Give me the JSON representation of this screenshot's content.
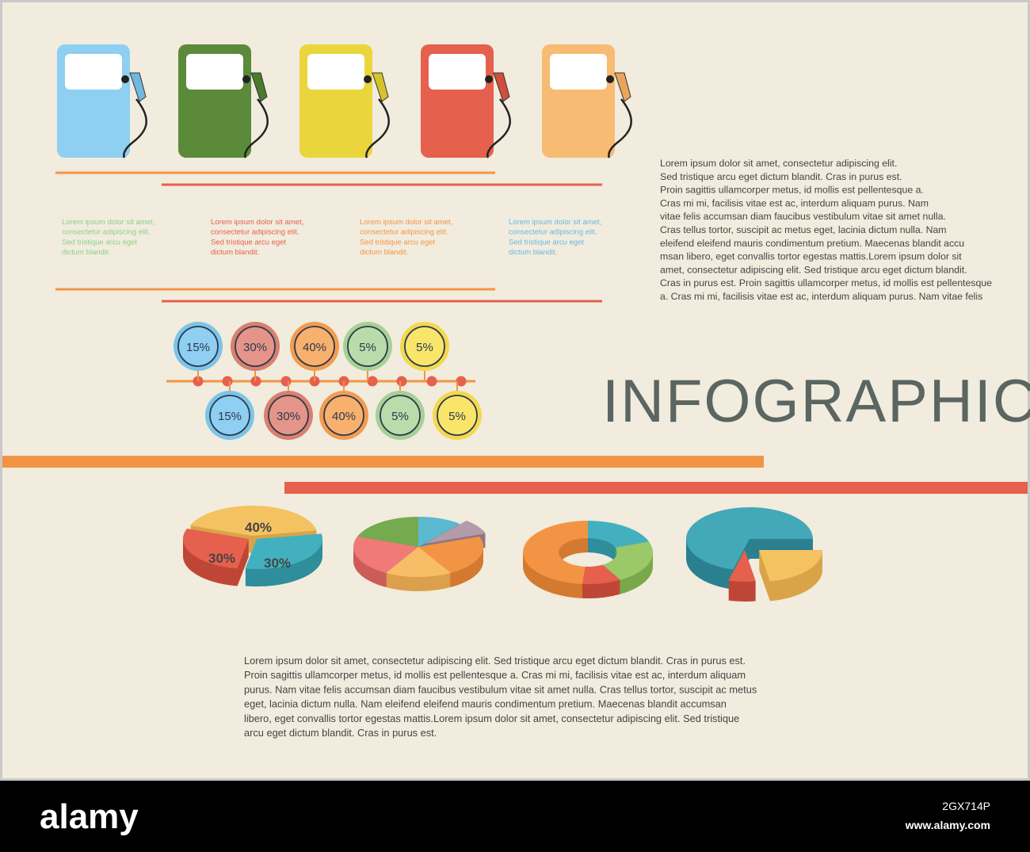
{
  "side_text": [
    "Lorem ipsum dolor sit amet, consectetur adipiscing elit.",
    "Sed tristique arcu eget dictum blandit. Cras in purus est.",
    "Proin sagittis ullamcorper metus, id mollis est pellentesque a.",
    "Cras mi mi, facilisis vitae est ac, interdum aliquam purus. Nam",
    "vitae felis accumsan diam faucibus vestibulum vitae sit amet nulla.",
    "Cras tellus tortor, suscipit ac metus eget, lacinia dictum nulla. Nam",
    "eleifend eleifend mauris condimentum pretium. Maecenas blandit accu",
    "msan libero, eget convallis tortor egestas mattis.Lorem ipsum dolor sit",
    "amet, consectetur adipiscing elit. Sed tristique arcu eget dictum blandit.",
    "Cras in purus est. Proin sagittis ullamcorper metus, id mollis est pellentesque",
    "a. Cras mi mi, facilisis vitae est ac, interdum aliquam purus. Nam vitae felis"
  ],
  "blurbs": [
    [
      "Lorem ipsum dolor sit amet,",
      "consectetur adipiscing elit.",
      "Sed tristique arcu eget",
      "dictum blandit."
    ],
    [
      "Lorem ipsum dolor sit amet,",
      "consectetur adipiscing elit.",
      "Sed tristique arcu eget",
      "dictum blandit."
    ],
    [
      "Lorem ipsum dolor sit amet,",
      "consectetur adipiscing elit.",
      "Sed tristique arcu eget",
      "dictum blandit."
    ],
    [
      "Lorem ipsum dolor sit amet,",
      "consectetur adipiscing elit.",
      "Sed tristique arcu eget",
      "dictum blandit."
    ]
  ],
  "circles_top": [
    "15%",
    "30%",
    "40%",
    "5%",
    "5%"
  ],
  "circles_bottom": [
    "15%",
    "30%",
    "40%",
    "5%",
    "5%"
  ],
  "title": "INFOGRAPHIC",
  "pie_labels": [
    "40%",
    "30%",
    "30%"
  ],
  "body_text": [
    "Lorem ipsum dolor sit amet, consectetur adipiscing elit. Sed tristique arcu eget dictum blandit. Cras in purus est.",
    "Proin sagittis ullamcorper metus, id mollis est pellentesque a. Cras mi mi, facilisis vitae est ac, interdum aliquam",
    "purus. Nam vitae felis accumsan diam faucibus vestibulum vitae sit amet nulla. Cras tellus tortor, suscipit ac metus",
    "eget, lacinia dictum nulla. Nam eleifend eleifend mauris condimentum pretium. Maecenas blandit accumsan",
    "libero, eget convallis tortor egestas mattis.Lorem ipsum dolor sit amet, consectetur adipiscing elit. Sed tristique",
    "arcu eget dictum blandit. Cras in purus est."
  ],
  "footer": {
    "brand": "alamy",
    "image_id": "2GX714P",
    "site": "www.alamy.com"
  }
}
